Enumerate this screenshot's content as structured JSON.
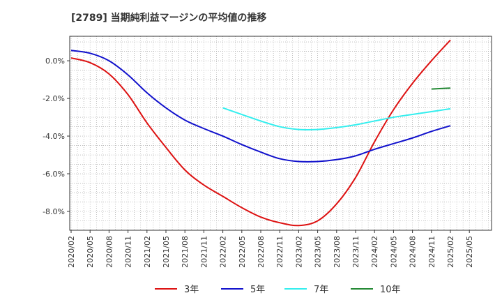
{
  "chart_data": {
    "type": "line",
    "title": "[2789]  当期純利益マージンの平均値の推移",
    "xlabel": "",
    "ylabel": "",
    "x_ticks": [
      "2020/02",
      "2020/05",
      "2020/08",
      "2020/11",
      "2021/02",
      "2021/05",
      "2021/08",
      "2021/11",
      "2022/02",
      "2022/05",
      "2022/08",
      "2022/11",
      "2023/02",
      "2023/05",
      "2023/08",
      "2023/11",
      "2024/02",
      "2024/05",
      "2024/08",
      "2024/11",
      "2025/02",
      "2025/05"
    ],
    "y_ticks": [
      "0.0%",
      "-2.0%",
      "-4.0%",
      "-6.0%",
      "-8.0%"
    ],
    "y_tick_values": [
      0,
      -2,
      -4,
      -6,
      -8
    ],
    "ylim": [
      -9,
      1.3
    ],
    "grid": true,
    "legend_position": "bottom",
    "series": [
      {
        "name": "3年",
        "color": "#dd1111",
        "x": [
          "2020/02",
          "2020/05",
          "2020/08",
          "2020/11",
          "2021/02",
          "2021/05",
          "2021/08",
          "2021/11",
          "2022/02",
          "2022/05",
          "2022/08",
          "2022/11",
          "2023/02",
          "2023/05",
          "2023/08",
          "2023/11",
          "2024/02",
          "2024/05",
          "2024/08",
          "2024/11",
          "2025/02"
        ],
        "values": [
          0.15,
          -0.1,
          -0.7,
          -1.8,
          -3.3,
          -4.6,
          -5.8,
          -6.6,
          -7.2,
          -7.8,
          -8.3,
          -8.6,
          -8.75,
          -8.5,
          -7.6,
          -6.2,
          -4.3,
          -2.6,
          -1.2,
          0.0,
          1.1
        ]
      },
      {
        "name": "5年",
        "color": "#1111cc",
        "x": [
          "2020/02",
          "2020/05",
          "2020/08",
          "2020/11",
          "2021/02",
          "2021/05",
          "2021/08",
          "2021/11",
          "2022/02",
          "2022/05",
          "2022/08",
          "2022/11",
          "2023/02",
          "2023/05",
          "2023/08",
          "2023/11",
          "2024/02",
          "2024/05",
          "2024/08",
          "2024/11",
          "2025/02"
        ],
        "values": [
          0.55,
          0.4,
          0.0,
          -0.75,
          -1.7,
          -2.5,
          -3.15,
          -3.6,
          -4.0,
          -4.45,
          -4.85,
          -5.2,
          -5.35,
          -5.35,
          -5.25,
          -5.05,
          -4.7,
          -4.4,
          -4.1,
          -3.75,
          -3.45
        ]
      },
      {
        "name": "7年",
        "color": "#33eeee",
        "x": [
          "2022/02",
          "2022/05",
          "2022/08",
          "2022/11",
          "2023/02",
          "2023/05",
          "2023/08",
          "2023/11",
          "2024/02",
          "2024/05",
          "2024/08",
          "2024/11",
          "2025/02"
        ],
        "values": [
          -2.5,
          -2.85,
          -3.2,
          -3.5,
          -3.65,
          -3.65,
          -3.55,
          -3.4,
          -3.2,
          -3.0,
          -2.85,
          -2.7,
          -2.55
        ]
      },
      {
        "name": "10年",
        "color": "#228833",
        "x": [
          "2024/11",
          "2025/02"
        ],
        "values": [
          -1.5,
          -1.45
        ]
      }
    ]
  }
}
